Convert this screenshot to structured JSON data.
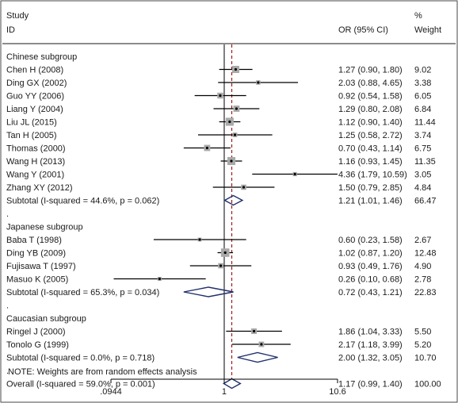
{
  "chart_data": {
    "type": "forest",
    "header": {
      "study_line1": "Study",
      "study_line2": "ID",
      "or_label": "OR (95% CI)",
      "weight_line1": "%",
      "weight_line2": "Weight"
    },
    "x_scale": "log",
    "x_ticks": [
      {
        "value": 0.0944,
        "label": ".0944"
      },
      {
        "value": 1,
        "label": "1"
      },
      {
        "value": 10.6,
        "label": "10.6"
      }
    ],
    "xlim": [
      0.0944,
      10.6
    ],
    "reference_line": 1,
    "overall_line": 1.17,
    "rows": [
      {
        "kind": "header",
        "label": "Chinese subgroup"
      },
      {
        "kind": "study",
        "label": "Chen H  (2008)",
        "or": 1.27,
        "lo": 0.9,
        "hi": 1.8,
        "or_text": "1.27 (0.90, 1.80)",
        "weight": 9.02,
        "weight_text": "9.02"
      },
      {
        "kind": "study",
        "label": "Ding GX (2002)",
        "or": 2.03,
        "lo": 0.88,
        "hi": 4.65,
        "or_text": "2.03 (0.88, 4.65)",
        "weight": 3.38,
        "weight_text": "3.38"
      },
      {
        "kind": "study",
        "label": "Guo YY (2006)",
        "or": 0.92,
        "lo": 0.54,
        "hi": 1.58,
        "or_text": "0.92 (0.54, 1.58)",
        "weight": 6.05,
        "weight_text": "6.05"
      },
      {
        "kind": "study",
        "label": "Liang Y  (2004)",
        "or": 1.29,
        "lo": 0.8,
        "hi": 2.08,
        "or_text": "1.29 (0.80, 2.08)",
        "weight": 6.84,
        "weight_text": "6.84"
      },
      {
        "kind": "study",
        "label": "Liu JL (2015)",
        "or": 1.12,
        "lo": 0.9,
        "hi": 1.4,
        "or_text": "1.12 (0.90, 1.40)",
        "weight": 11.44,
        "weight_text": "11.44"
      },
      {
        "kind": "study",
        "label": "Tan H (2005)",
        "or": 1.25,
        "lo": 0.58,
        "hi": 2.72,
        "or_text": "1.25 (0.58, 2.72)",
        "weight": 3.74,
        "weight_text": "3.74"
      },
      {
        "kind": "study",
        "label": "Thomas  (2000)",
        "or": 0.7,
        "lo": 0.43,
        "hi": 1.14,
        "or_text": "0.70 (0.43, 1.14)",
        "weight": 6.75,
        "weight_text": "6.75"
      },
      {
        "kind": "study",
        "label": "Wang H (2013)",
        "or": 1.16,
        "lo": 0.93,
        "hi": 1.45,
        "or_text": "1.16 (0.93, 1.45)",
        "weight": 11.35,
        "weight_text": "11.35"
      },
      {
        "kind": "study",
        "label": "Wang Y (2001)",
        "or": 4.36,
        "lo": 1.79,
        "hi": 10.59,
        "or_text": "4.36 (1.79, 10.59)",
        "weight": 3.05,
        "weight_text": "3.05"
      },
      {
        "kind": "study",
        "label": "Zhang XY (2012)",
        "or": 1.5,
        "lo": 0.79,
        "hi": 2.85,
        "or_text": "1.50 (0.79, 2.85)",
        "weight": 4.84,
        "weight_text": "4.84"
      },
      {
        "kind": "subtotal",
        "label": "Subtotal  (I-squared = 44.6%, p = 0.062)",
        "or": 1.21,
        "lo": 1.01,
        "hi": 1.46,
        "or_text": "1.21 (1.01, 1.46)",
        "weight": 66.47,
        "weight_text": "66.47"
      },
      {
        "kind": "dot",
        "label": "."
      },
      {
        "kind": "header",
        "label": "Japanese subgroup"
      },
      {
        "kind": "study",
        "label": "Baba T (1998)",
        "or": 0.6,
        "lo": 0.23,
        "hi": 1.58,
        "or_text": "0.60 (0.23, 1.58)",
        "weight": 2.67,
        "weight_text": "2.67"
      },
      {
        "kind": "study",
        "label": "Ding YB (2009)",
        "or": 1.02,
        "lo": 0.87,
        "hi": 1.2,
        "or_text": "1.02 (0.87, 1.20)",
        "weight": 12.48,
        "weight_text": "12.48"
      },
      {
        "kind": "study",
        "label": "Fujisawa T (1997)",
        "or": 0.93,
        "lo": 0.49,
        "hi": 1.76,
        "or_text": "0.93 (0.49, 1.76)",
        "weight": 4.9,
        "weight_text": "4.90"
      },
      {
        "kind": "study",
        "label": "Masuo K (2005)",
        "or": 0.26,
        "lo": 0.1,
        "hi": 0.68,
        "or_text": "0.26 (0.10, 0.68)",
        "weight": 2.78,
        "weight_text": "2.78"
      },
      {
        "kind": "subtotal",
        "label": "Subtotal  (I-squared = 65.3%, p = 0.034)",
        "or": 0.72,
        "lo": 0.43,
        "hi": 1.21,
        "or_text": "0.72 (0.43, 1.21)",
        "weight": 22.83,
        "weight_text": "22.83"
      },
      {
        "kind": "dot",
        "label": "."
      },
      {
        "kind": "header",
        "label": "Caucasian subgroup"
      },
      {
        "kind": "study",
        "label": "Ringel J (2000)",
        "or": 1.86,
        "lo": 1.04,
        "hi": 3.33,
        "or_text": "1.86 (1.04, 3.33)",
        "weight": 5.5,
        "weight_text": "5.50"
      },
      {
        "kind": "study",
        "label": "Tonolo G (1999)",
        "or": 2.17,
        "lo": 1.18,
        "hi": 3.99,
        "or_text": "2.17 (1.18, 3.99)",
        "weight": 5.2,
        "weight_text": "5.20"
      },
      {
        "kind": "subtotal",
        "label": "Subtotal  (I-squared = 0.0%, p = 0.718)",
        "or": 2.0,
        "lo": 1.32,
        "hi": 3.05,
        "or_text": "2.00 (1.32, 3.05)",
        "weight": 10.7,
        "weight_text": "10.70"
      },
      {
        "kind": "dot",
        "label": "."
      },
      {
        "kind": "overall",
        "label": "Overall  (I-squared = 59.0%, p = 0.001)",
        "or": 1.17,
        "lo": 0.99,
        "hi": 1.4,
        "or_text": "1.17 (0.99, 1.40)",
        "weight": 100.0,
        "weight_text": "100.00"
      }
    ],
    "note": "NOTE: Weights are from random effects analysis",
    "colors": {
      "text": "#1a1a1a",
      "ci_line": "#000000",
      "weight_box": "#a9a9a9",
      "diamond": "#1f2f6b",
      "overall_line": "#a01818",
      "frame": "#4a4a4a"
    }
  }
}
